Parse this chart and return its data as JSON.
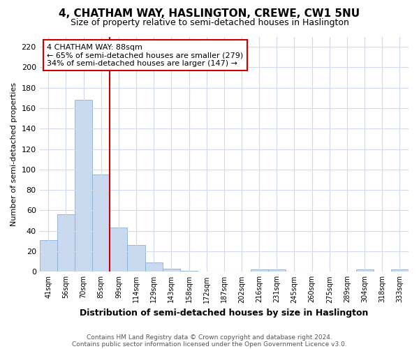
{
  "title": "4, CHATHAM WAY, HASLINGTON, CREWE, CW1 5NU",
  "subtitle": "Size of property relative to semi-detached houses in Haslington",
  "xlabel": "Distribution of semi-detached houses by size in Haslington",
  "ylabel": "Number of semi-detached properties",
  "footnote1": "Contains HM Land Registry data © Crown copyright and database right 2024.",
  "footnote2": "Contains public sector information licensed under the Open Government Licence v3.0.",
  "categories": [
    "41sqm",
    "56sqm",
    "70sqm",
    "85sqm",
    "99sqm",
    "114sqm",
    "129sqm",
    "143sqm",
    "158sqm",
    "172sqm",
    "187sqm",
    "202sqm",
    "216sqm",
    "231sqm",
    "245sqm",
    "260sqm",
    "275sqm",
    "289sqm",
    "304sqm",
    "318sqm",
    "333sqm"
  ],
  "values": [
    31,
    56,
    168,
    95,
    43,
    26,
    9,
    3,
    1,
    0,
    0,
    0,
    2,
    2,
    0,
    0,
    0,
    0,
    2,
    0,
    2
  ],
  "bar_color": "#c9d9ef",
  "bar_edge_color": "#89afd4",
  "vline_x": 3.5,
  "vline_color": "#cc0000",
  "annotation_title": "4 CHATHAM WAY: 88sqm",
  "annotation_line1": "← 65% of semi-detached houses are smaller (279)",
  "annotation_line2": "34% of semi-detached houses are larger (147) →",
  "annotation_box_color": "#ffffff",
  "annotation_box_edge": "#cc0000",
  "ylim": [
    0,
    230
  ],
  "yticks": [
    0,
    20,
    40,
    60,
    80,
    100,
    120,
    140,
    160,
    180,
    200,
    220
  ],
  "background_color": "#ffffff",
  "plot_bg_color": "#ffffff",
  "grid_color": "#d0daea"
}
